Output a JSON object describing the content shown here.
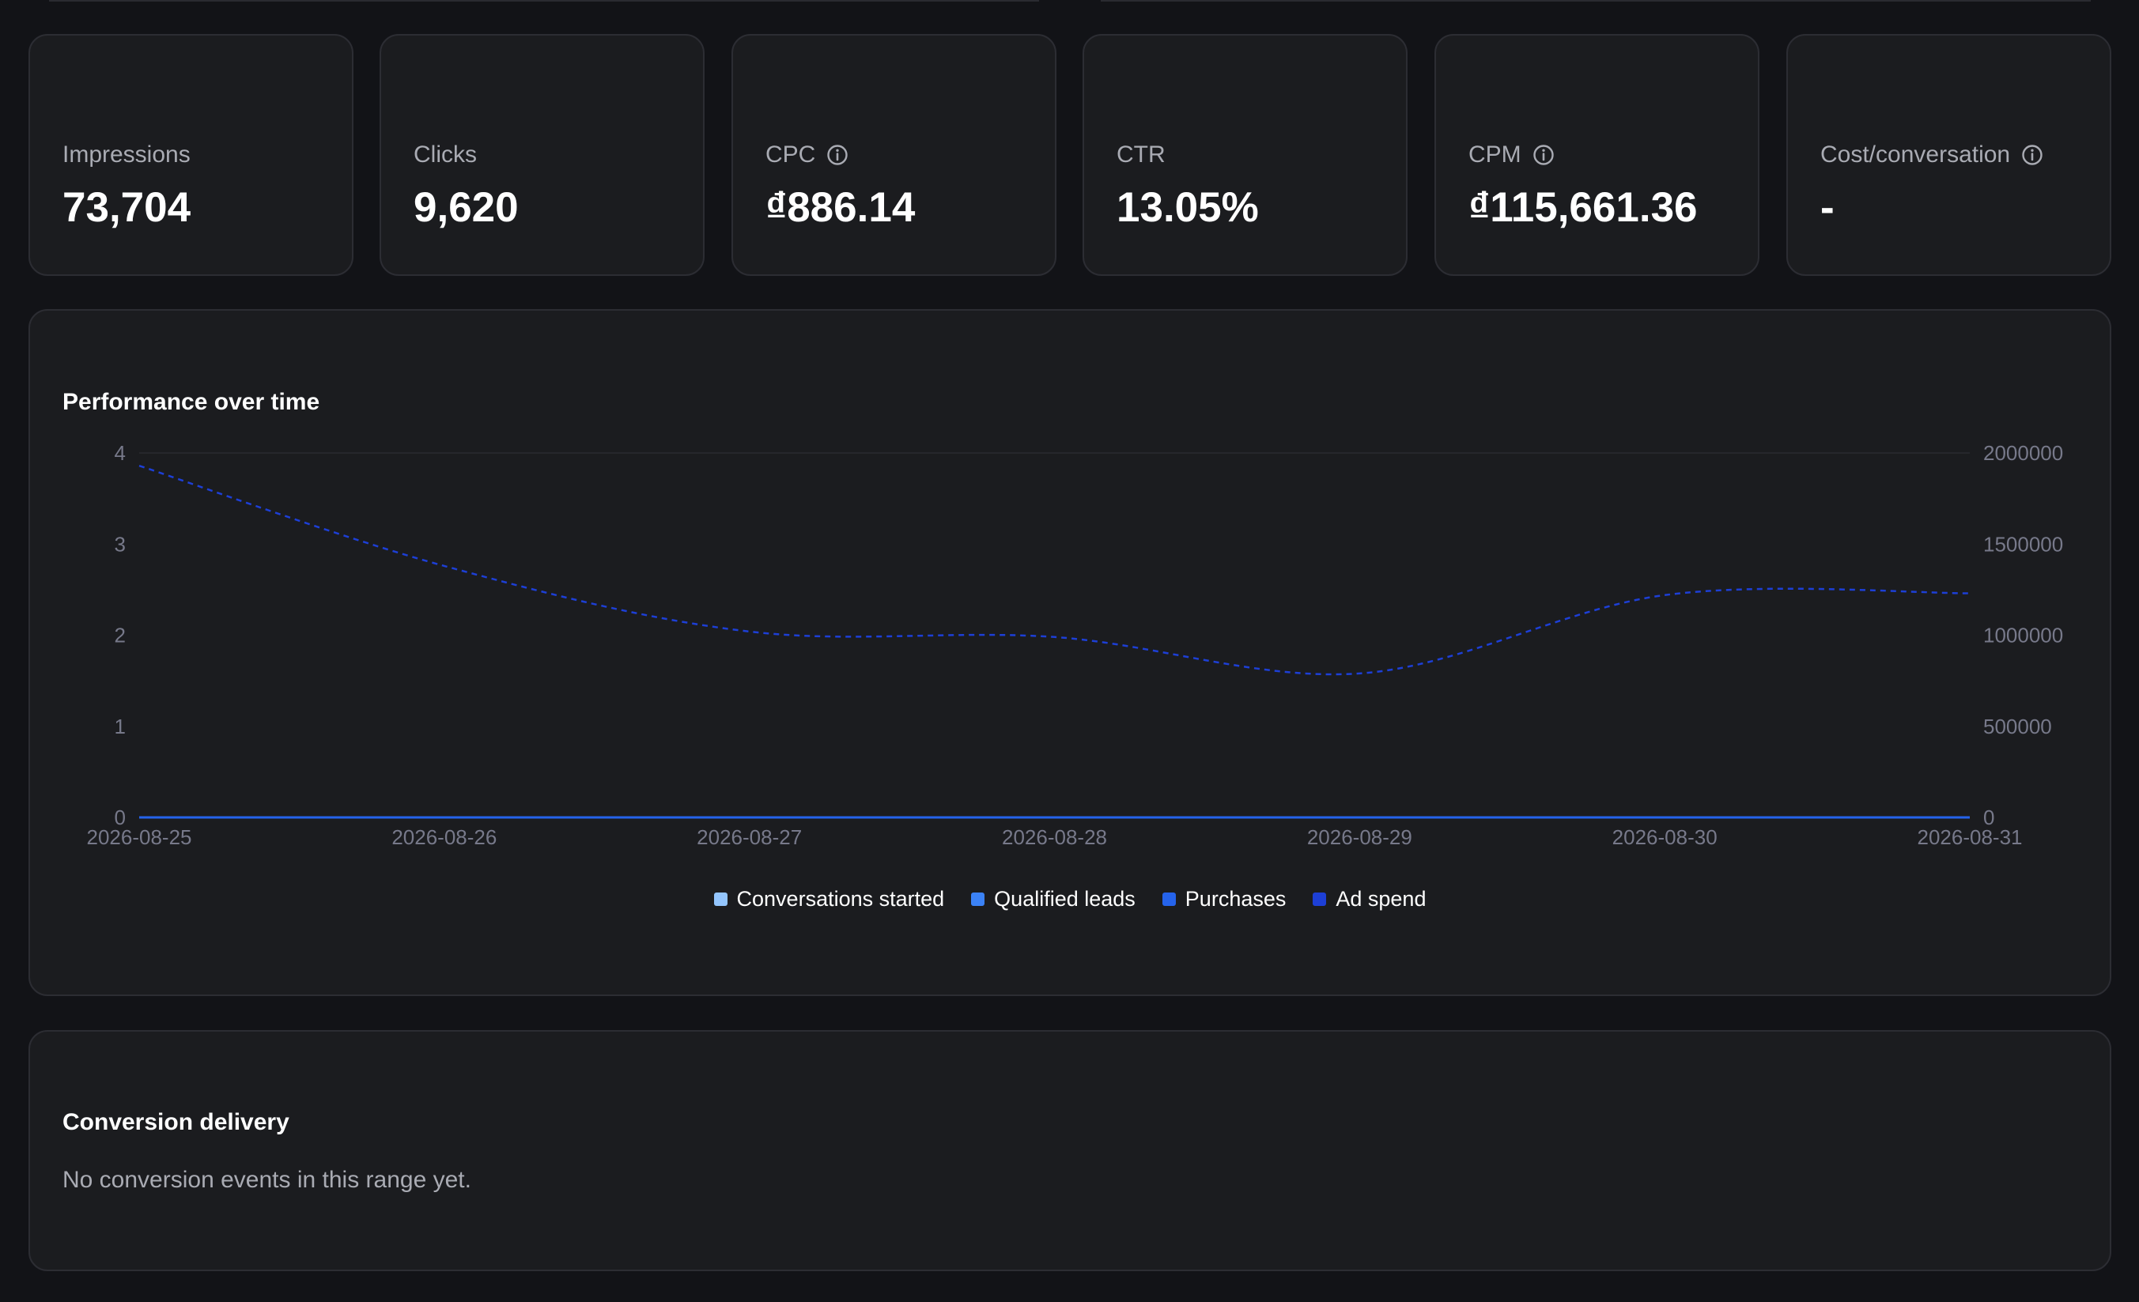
{
  "metrics": [
    {
      "label": "Impressions",
      "value": "73,704",
      "info": false
    },
    {
      "label": "Clicks",
      "value": "9,620",
      "info": false
    },
    {
      "label": "CPC",
      "value": "₫886.14",
      "info": true
    },
    {
      "label": "CTR",
      "value": "13.05%",
      "info": false
    },
    {
      "label": "CPM",
      "value": "₫115,661.36",
      "info": true
    },
    {
      "label": "Cost/conversation",
      "value": "-",
      "info": true
    }
  ],
  "performance": {
    "title": "Performance over time"
  },
  "conversion": {
    "title": "Conversion delivery",
    "empty_text": "No conversion events in this range yet."
  },
  "colors": {
    "background": "#121317",
    "card": "#1b1c1f",
    "border": "#2c2d33",
    "muted_text": "#a9abb3",
    "axis_text": "#77798a"
  },
  "icons": {
    "metric_info": "info-circle-icon"
  },
  "chart_data": {
    "type": "line",
    "x": [
      "2026-08-25",
      "2026-08-26",
      "2026-08-27",
      "2026-08-28",
      "2026-08-29",
      "2026-08-30",
      "2026-08-31"
    ],
    "y_left": {
      "ticks": [
        "0",
        "1",
        "2",
        "3",
        "4"
      ],
      "ylim": [
        0,
        4
      ]
    },
    "y_right": {
      "ticks": [
        "0",
        "500000",
        "1000000",
        "1500000",
        "2000000"
      ],
      "ylim": [
        0,
        2000000
      ]
    },
    "series": [
      {
        "name": "Conversations started",
        "axis": "left",
        "color": "#93c5fd",
        "style": "solid",
        "values": [
          0,
          0,
          0,
          0,
          0,
          0,
          0
        ]
      },
      {
        "name": "Qualified leads",
        "axis": "left",
        "color": "#3b82f6",
        "style": "solid",
        "values": [
          0,
          0,
          0,
          0,
          0,
          0,
          0
        ]
      },
      {
        "name": "Purchases",
        "axis": "left",
        "color": "#2563eb",
        "style": "solid",
        "values": [
          0,
          0,
          0,
          0,
          0,
          0,
          0
        ]
      },
      {
        "name": "Ad spend",
        "axis": "right",
        "color": "#1d3fd6",
        "style": "dashed",
        "values": [
          1930000,
          1380000,
          1020000,
          990000,
          790000,
          1220000,
          1230000
        ]
      }
    ],
    "grid": false,
    "legend_position": "bottom-center"
  }
}
